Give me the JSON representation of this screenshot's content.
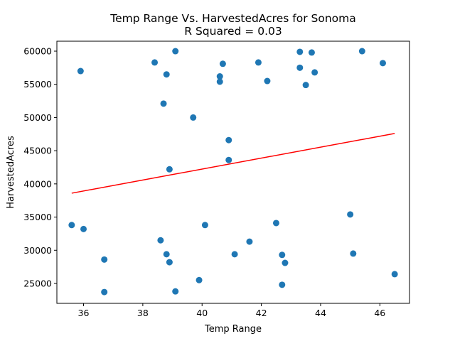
{
  "chart_data": {
    "type": "scatter",
    "title": "Temp Range Vs. HarvestedAcres for Sonoma",
    "subtitle": "R Squared =  0.03",
    "xlabel": "Temp Range",
    "ylabel": "HarvestedAcres",
    "xlim": [
      35.1,
      47.0
    ],
    "ylim": [
      22000,
      61500
    ],
    "xticks": [
      36,
      38,
      40,
      42,
      44,
      46
    ],
    "yticks": [
      25000,
      30000,
      35000,
      40000,
      45000,
      50000,
      55000,
      60000
    ],
    "grid": false,
    "colors": {
      "points": "#1f77b4",
      "regression": "#ff0000"
    },
    "series": [
      {
        "type": "scatter",
        "points": [
          [
            35.6,
            33800
          ],
          [
            35.9,
            57000
          ],
          [
            36.0,
            33200
          ],
          [
            36.7,
            28600
          ],
          [
            36.7,
            23700
          ],
          [
            38.4,
            58300
          ],
          [
            38.6,
            31500
          ],
          [
            38.7,
            52100
          ],
          [
            38.8,
            56500
          ],
          [
            38.8,
            29400
          ],
          [
            38.9,
            28200
          ],
          [
            38.9,
            42200
          ],
          [
            39.1,
            60000
          ],
          [
            39.1,
            23800
          ],
          [
            39.7,
            50000
          ],
          [
            39.9,
            25500
          ],
          [
            40.1,
            33800
          ],
          [
            40.6,
            56200
          ],
          [
            40.6,
            55400
          ],
          [
            40.7,
            58100
          ],
          [
            40.9,
            46600
          ],
          [
            40.9,
            43600
          ],
          [
            41.1,
            29400
          ],
          [
            41.6,
            31300
          ],
          [
            41.9,
            58300
          ],
          [
            42.2,
            55500
          ],
          [
            42.5,
            34100
          ],
          [
            42.7,
            29300
          ],
          [
            42.7,
            24800
          ],
          [
            42.8,
            28100
          ],
          [
            43.3,
            59900
          ],
          [
            43.3,
            57500
          ],
          [
            43.5,
            54900
          ],
          [
            43.7,
            59800
          ],
          [
            43.8,
            56800
          ],
          [
            45.0,
            35400
          ],
          [
            45.1,
            29500
          ],
          [
            45.4,
            60000
          ],
          [
            46.1,
            58200
          ],
          [
            46.5,
            26400
          ]
        ]
      },
      {
        "type": "line",
        "points": [
          [
            35.6,
            38600
          ],
          [
            46.5,
            47600
          ]
        ]
      }
    ]
  }
}
